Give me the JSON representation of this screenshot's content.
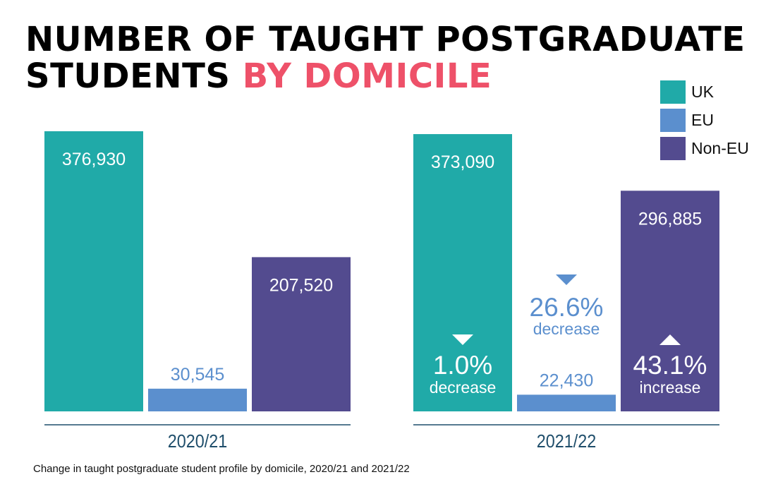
{
  "title": {
    "line1": "NUMBER OF TAUGHT POSTGRADUATE",
    "line2_dark": "STUDENTS ",
    "line2_accent": "BY DOMICILE"
  },
  "colors": {
    "UK": "#20aaa8",
    "EU": "#5b8fce",
    "Non-EU": "#534b8f",
    "title_accent": "#ee5169",
    "eu_text": "#5b8fce",
    "axis": "#1f4e6b"
  },
  "legend": {
    "items": [
      "UK",
      "EU",
      "Non-EU"
    ]
  },
  "caption": "Change in taught postgraduate student profile by domicile, 2020/21 and 2021/22",
  "chart_data": {
    "type": "bar",
    "title": "NUMBER OF TAUGHT POSTGRADUATE STUDENTS BY DOMICILE",
    "categories": [
      "2020/21",
      "2021/22"
    ],
    "series": [
      {
        "name": "UK",
        "values": [
          376930,
          373090
        ],
        "labels": [
          "376,930",
          "373,090"
        ]
      },
      {
        "name": "EU",
        "values": [
          30545,
          22430
        ],
        "labels": [
          "30,545",
          "22,430"
        ]
      },
      {
        "name": "Non-EU",
        "values": [
          207520,
          296885
        ],
        "labels": [
          "207,520",
          "296,885"
        ]
      }
    ],
    "changes": [
      {
        "series": "UK",
        "direction": "down",
        "percent": "1.0%",
        "word": "decrease"
      },
      {
        "series": "EU",
        "direction": "down",
        "percent": "26.6%",
        "word": "decrease"
      },
      {
        "series": "Non-EU",
        "direction": "up",
        "percent": "43.1%",
        "word": "increase"
      }
    ],
    "ylim": [
      0,
      400000
    ],
    "grid": false,
    "legend_position": "top-right"
  }
}
